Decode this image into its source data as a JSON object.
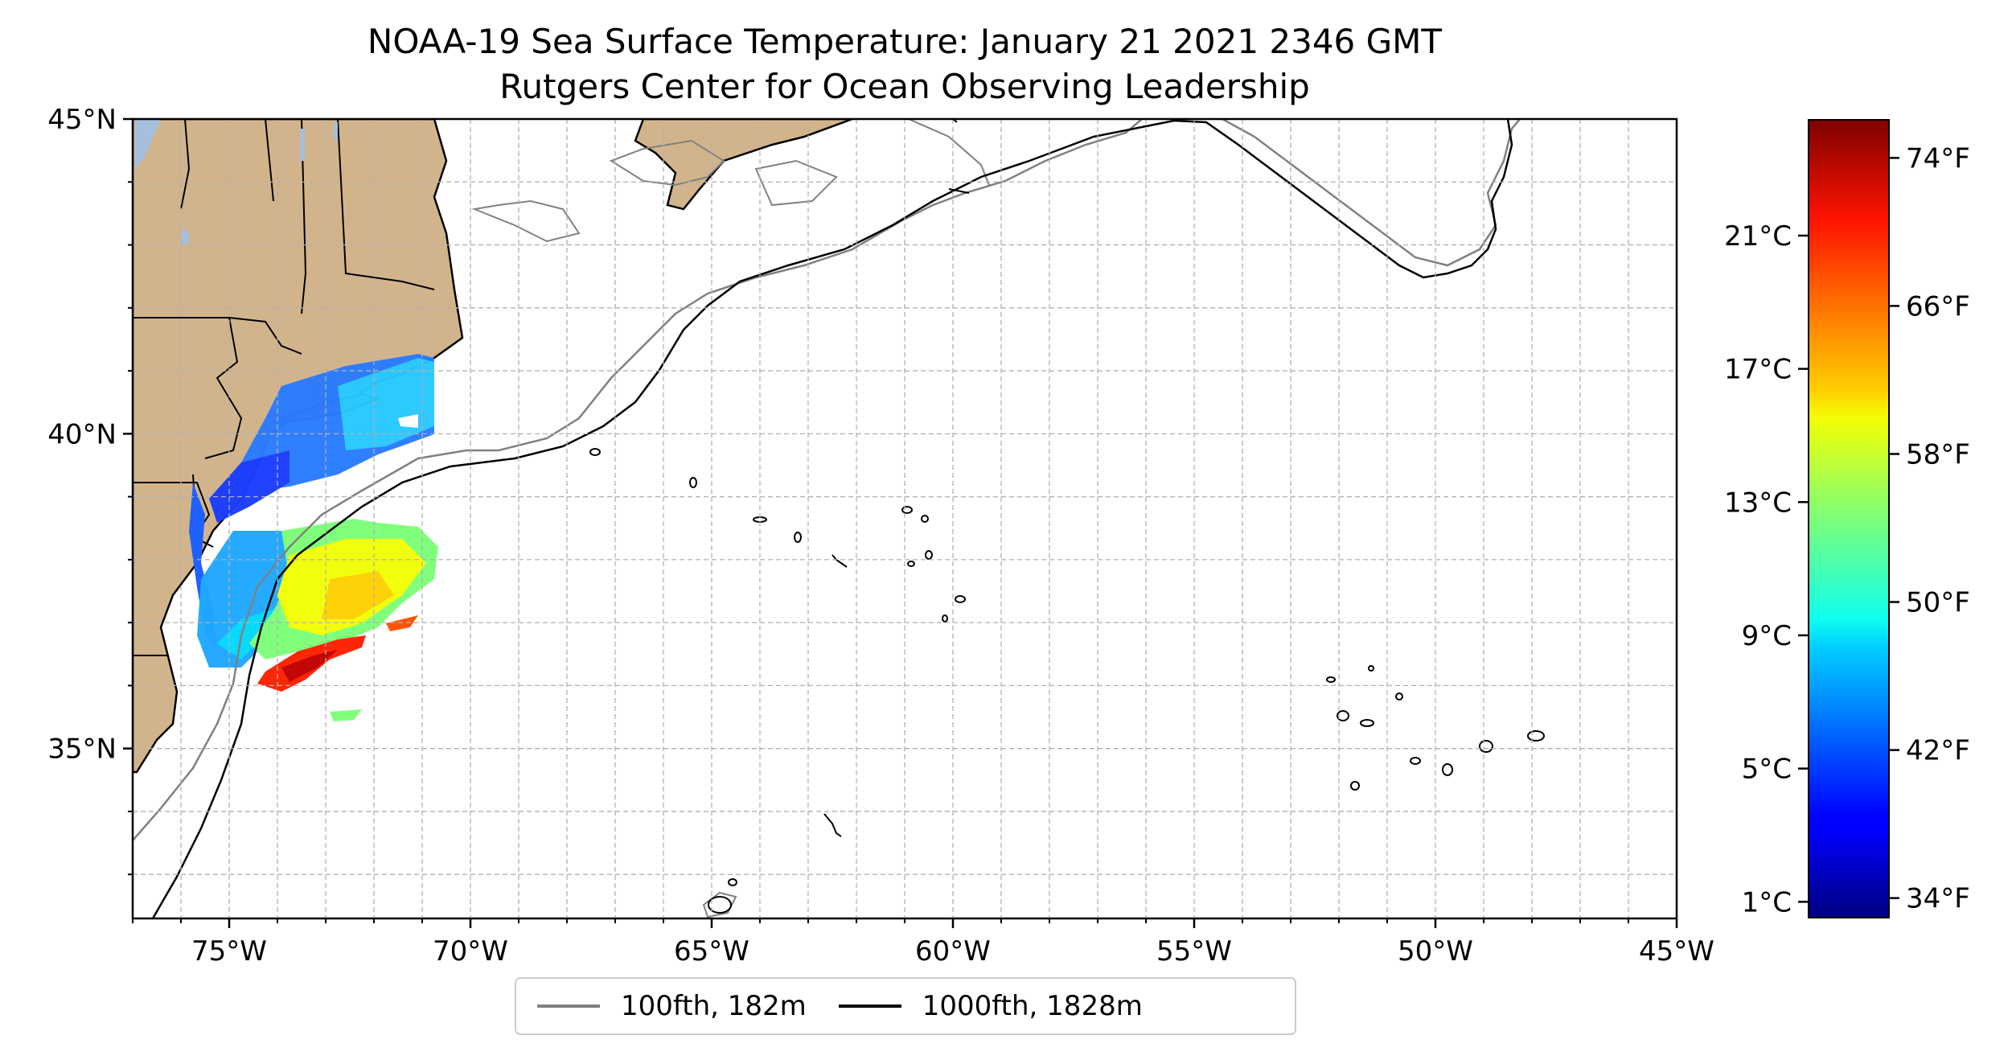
{
  "title": {
    "line1": "NOAA-19 Sea Surface Temperature: January 21 2021 2346 GMT",
    "line2": "Rutgers Center for Ocean Observing Leadership"
  },
  "map": {
    "extent": {
      "lon_min": -77,
      "lon_max": -45,
      "lat_min": 32.3,
      "lat_max": 45
    },
    "lon_ticks": [
      {
        "lon": -75,
        "label": "75°W"
      },
      {
        "lon": -70,
        "label": "70°W"
      },
      {
        "lon": -65,
        "label": "65°W"
      },
      {
        "lon": -60,
        "label": "60°W"
      },
      {
        "lon": -55,
        "label": "55°W"
      },
      {
        "lon": -50,
        "label": "50°W"
      },
      {
        "lon": -45,
        "label": "45°W"
      }
    ],
    "lat_ticks": [
      {
        "lat": 45,
        "label": "45°N"
      },
      {
        "lat": 40,
        "label": "40°N"
      },
      {
        "lat": 35,
        "label": "35°N"
      }
    ],
    "gridlines": true,
    "land_color": "#d2b48c",
    "lake_color": "#a5bfdd"
  },
  "legend": {
    "placement": "bottom-center",
    "items": [
      {
        "label": "100fth, 182m",
        "color": "#808080"
      },
      {
        "label": "1000fth, 1828m",
        "color": "#000000"
      }
    ]
  },
  "colorbar": {
    "colormap": "jet",
    "range_celsius": [
      0.5,
      24.5
    ],
    "celsius_ticks": [
      "1°C",
      "5°C",
      "9°C",
      "13°C",
      "17°C",
      "21°C"
    ],
    "fahrenheit_ticks": [
      "34°F",
      "42°F",
      "50°F",
      "58°F",
      "66°F",
      "74°F"
    ]
  }
}
